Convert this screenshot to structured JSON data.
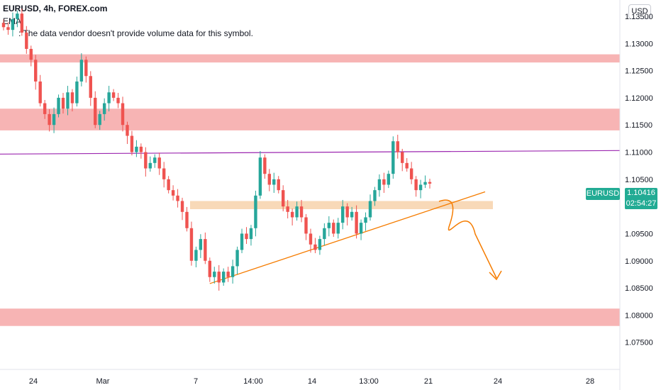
{
  "header": {
    "title": "EURUSD, 4h, FOREX.com",
    "ema_label": "EMA",
    "notice": ": The data vendor doesn't provide volume data for this symbol."
  },
  "currency_button": "USD",
  "price_tag": {
    "symbol": "EURUSD",
    "price": "1.10416",
    "countdown": "02:54:27"
  },
  "colors": {
    "zone_red": "#f7b4b4",
    "zone_orange": "#f6cfa6",
    "bull": "#26a69a",
    "bear": "#ef5350",
    "ema": "#42a5f5",
    "resistance_line": "#9c27b0",
    "trendline": "#f57c00",
    "projection": "#f57c00",
    "price_tag": "#22ab94"
  },
  "chart_data": {
    "type": "candlestick",
    "symbol": "EURUSD",
    "timeframe": "4h",
    "source": "FOREX.com",
    "ylim": [
      1.07,
      1.138
    ],
    "y_ticks": [
      "1.13500",
      "1.13000",
      "1.12500",
      "1.12000",
      "1.11500",
      "1.11000",
      "1.10500",
      "1.10000",
      "1.09500",
      "1.09000",
      "1.08500",
      "1.08000",
      "1.07500"
    ],
    "x_ticks": [
      "24",
      "Mar",
      "7",
      "14:00",
      "14",
      "13:00",
      "21",
      "24",
      "28"
    ],
    "last_price": 1.10416,
    "zones": [
      {
        "kind": "resistance",
        "from": 1.1265,
        "to": 1.128
      },
      {
        "kind": "resistance",
        "from": 1.114,
        "to": 1.118
      },
      {
        "kind": "pivot",
        "from": 1.0995,
        "to": 1.101
      },
      {
        "kind": "support",
        "from": 1.078,
        "to": 1.0812
      }
    ],
    "horizontal_line": 1.1099,
    "closes": [
      1.133,
      1.1325,
      1.1345,
      1.1355,
      1.132,
      1.129,
      1.127,
      1.123,
      1.119,
      1.117,
      1.115,
      1.117,
      1.12,
      1.118,
      1.121,
      1.119,
      1.123,
      1.127,
      1.124,
      1.12,
      1.115,
      1.117,
      1.119,
      1.121,
      1.12,
      1.119,
      1.115,
      1.113,
      1.11,
      1.111,
      1.11,
      1.107,
      1.108,
      1.109,
      1.107,
      1.105,
      1.103,
      1.102,
      1.101,
      1.099,
      1.096,
      1.09,
      1.092,
      1.094,
      1.09,
      1.087,
      1.088,
      1.086,
      1.088,
      1.087,
      1.089,
      1.092,
      1.095,
      1.094,
      1.096,
      1.102,
      1.109,
      1.106,
      1.104,
      1.105,
      1.103,
      1.1,
      1.099,
      1.098,
      1.1,
      1.098,
      1.095,
      1.093,
      1.092,
      1.094,
      1.096,
      1.097,
      1.095,
      1.097,
      1.1,
      1.098,
      1.099,
      1.095,
      1.097,
      1.098,
      1.101,
      1.103,
      1.105,
      1.104,
      1.106,
      1.112,
      1.11,
      1.108,
      1.107,
      1.105,
      1.103,
      1.104,
      1.1045,
      1.1042
    ]
  }
}
